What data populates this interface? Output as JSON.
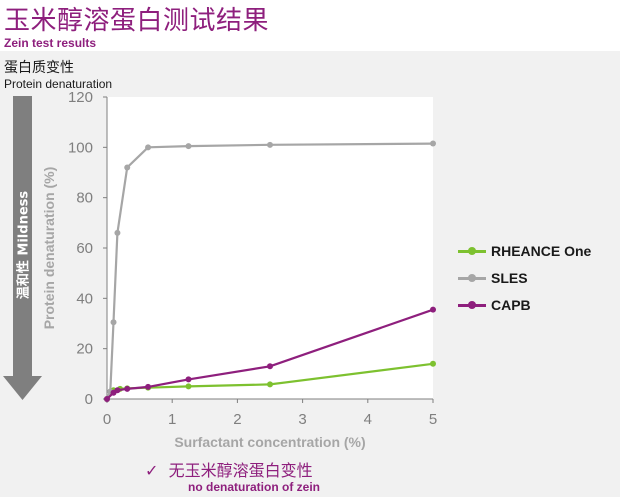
{
  "header": {
    "title_zh": "玉米醇溶蛋白测试结果",
    "title_en": "Zein test results"
  },
  "subheader": {
    "label_zh": "蛋白质变性",
    "label_en": "Protein denaturation"
  },
  "mildness_arrow": {
    "label": "温和性 Mildness",
    "color": "#7f7f7f"
  },
  "footnote": {
    "check_icon": "check-icon",
    "text_zh": "无玉米醇溶蛋白变性",
    "text_en": "no denaturation of zein"
  },
  "colors": {
    "brand": "#8e1f7d",
    "panel_bg": "#f1f1f1"
  },
  "chart_data": {
    "type": "line",
    "xlabel": "Surfactant concentration (%)",
    "ylabel": "Protein denaturation (%)",
    "xlim": [
      0,
      5
    ],
    "ylim": [
      0,
      120
    ],
    "xticks": [
      0,
      1,
      2,
      3,
      4,
      5
    ],
    "yticks": [
      0,
      20,
      40,
      60,
      80,
      100,
      120
    ],
    "grid": false,
    "legend_position": "right",
    "series": [
      {
        "name": "RHEANCE One",
        "color": "#7dc12f",
        "points": [
          [
            0,
            0
          ],
          [
            0.1,
            3.5
          ],
          [
            0.2,
            4.0
          ],
          [
            0.31,
            4.2
          ],
          [
            0.63,
            4.5
          ],
          [
            1.25,
            5.0
          ],
          [
            2.5,
            5.8
          ],
          [
            5,
            14.0
          ]
        ]
      },
      {
        "name": "SLES",
        "color": "#a6a6a6",
        "points": [
          [
            0,
            0
          ],
          [
            0.05,
            3
          ],
          [
            0.1,
            30.5
          ],
          [
            0.16,
            66
          ],
          [
            0.31,
            92
          ],
          [
            0.63,
            100
          ],
          [
            1.25,
            100.5
          ],
          [
            2.5,
            101
          ],
          [
            5,
            101.5
          ]
        ]
      },
      {
        "name": "CAPB",
        "color": "#8e1f7d",
        "points": [
          [
            0,
            0
          ],
          [
            0.1,
            2.5
          ],
          [
            0.16,
            3.5
          ],
          [
            0.31,
            4.0
          ],
          [
            0.63,
            4.8
          ],
          [
            1.25,
            7.8
          ],
          [
            2.5,
            13
          ],
          [
            5,
            35.5
          ]
        ]
      }
    ]
  }
}
